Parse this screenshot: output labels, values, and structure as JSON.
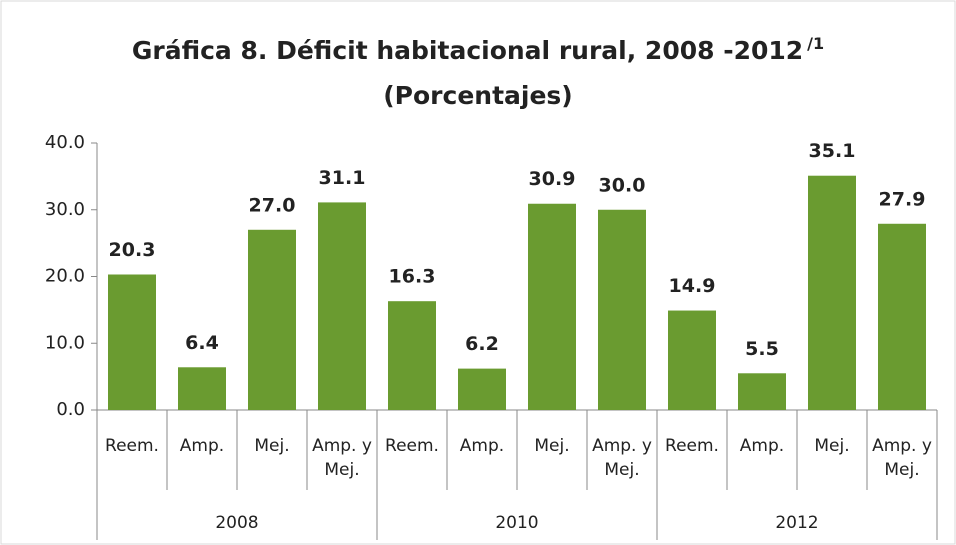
{
  "chart_data": {
    "type": "bar",
    "title": "Gráfica 8. Déficit habitacional rural, 2008 -2012",
    "title_superscript": "/1",
    "subtitle": "(Porcentajes)",
    "groups": [
      "2008",
      "2010",
      "2012"
    ],
    "categories": [
      "Reem.",
      "Amp.",
      "Mej.",
      "Amp. y Mej.",
      "Reem.",
      "Amp.",
      "Mej.",
      "Amp. y Mej.",
      "Reem.",
      "Amp.",
      "Mej.",
      "Amp. y Mej."
    ],
    "values": [
      20.3,
      6.4,
      27.0,
      31.1,
      16.3,
      6.2,
      30.9,
      30.0,
      14.9,
      5.5,
      35.1,
      27.9
    ],
    "value_labels": [
      "20.3",
      "6.4",
      "27.0",
      "31.1",
      "16.3",
      "6.2",
      "30.9",
      "30.0",
      "14.9",
      "5.5",
      "35.1",
      "27.9"
    ],
    "color": "#6a9b30",
    "ylim": [
      0,
      40
    ],
    "yticks": [
      {
        "value": 0,
        "label": "0.0"
      },
      {
        "value": 10,
        "label": "10.0"
      },
      {
        "value": 20,
        "label": "20.0"
      },
      {
        "value": 30,
        "label": "30.0"
      },
      {
        "value": 40,
        "label": "40.0"
      }
    ],
    "grid": false
  }
}
